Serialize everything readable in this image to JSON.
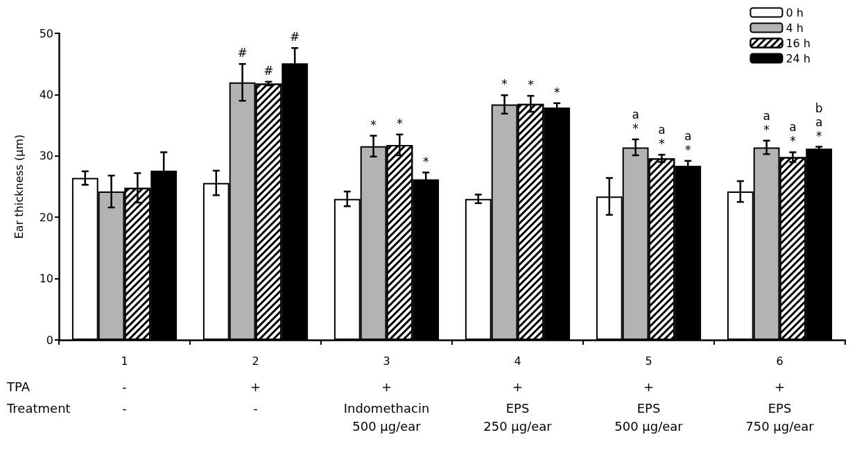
{
  "chart_data": {
    "type": "bar",
    "ylabel": "Ear thickness (µm)",
    "categories": [
      "1",
      "2",
      "3",
      "4",
      "5",
      "6"
    ],
    "series": [
      {
        "name": "0 h",
        "color": "#ffffff",
        "values": [
          26.4,
          25.6,
          23.0,
          23.0,
          23.4,
          24.2
        ],
        "errors": [
          1.1,
          2.0,
          1.2,
          0.7,
          3.0,
          1.7
        ]
      },
      {
        "name": "4 h",
        "color": "#b3b3b3",
        "values": [
          24.2,
          42.0,
          31.6,
          38.4,
          31.4,
          31.4
        ],
        "errors": [
          2.6,
          3.0,
          1.7,
          1.5,
          1.3,
          1.1
        ],
        "value_labels": [
          null,
          "#",
          "*",
          "*",
          "a\n*",
          "a\n*"
        ]
      },
      {
        "name": "16 h",
        "color": "#ffffff",
        "values": [
          24.8,
          41.8,
          31.8,
          38.5,
          29.6,
          29.8
        ],
        "errors": [
          2.4,
          0.3,
          1.7,
          1.3,
          0.6,
          0.8
        ],
        "value_labels": [
          null,
          "#",
          "*",
          "*",
          "a\n*",
          "a\n*"
        ]
      },
      {
        "name": "24 h",
        "color": "#000000",
        "values": [
          27.6,
          45.1,
          26.2,
          37.9,
          28.4,
          31.2
        ],
        "errors": [
          3.0,
          2.5,
          1.1,
          0.7,
          0.8,
          0.3
        ],
        "value_labels": [
          null,
          "#",
          "*",
          "*",
          "a\n*",
          "b\na\n*"
        ]
      }
    ],
    "ylim": [
      0,
      50
    ],
    "yticks": [
      0,
      10,
      20,
      30,
      40,
      50
    ],
    "grid": false,
    "legend": "top right",
    "annotations": [
      "TPA",
      "-",
      "+",
      "+",
      "+",
      "+",
      "+",
      "Treatment",
      "-",
      "-",
      "Indomethacin\n500 µg/ear",
      "EPS\n250 µg/ear",
      "EPS\n500 µg/ear",
      "EPS\n750 µg/ear"
    ]
  }
}
